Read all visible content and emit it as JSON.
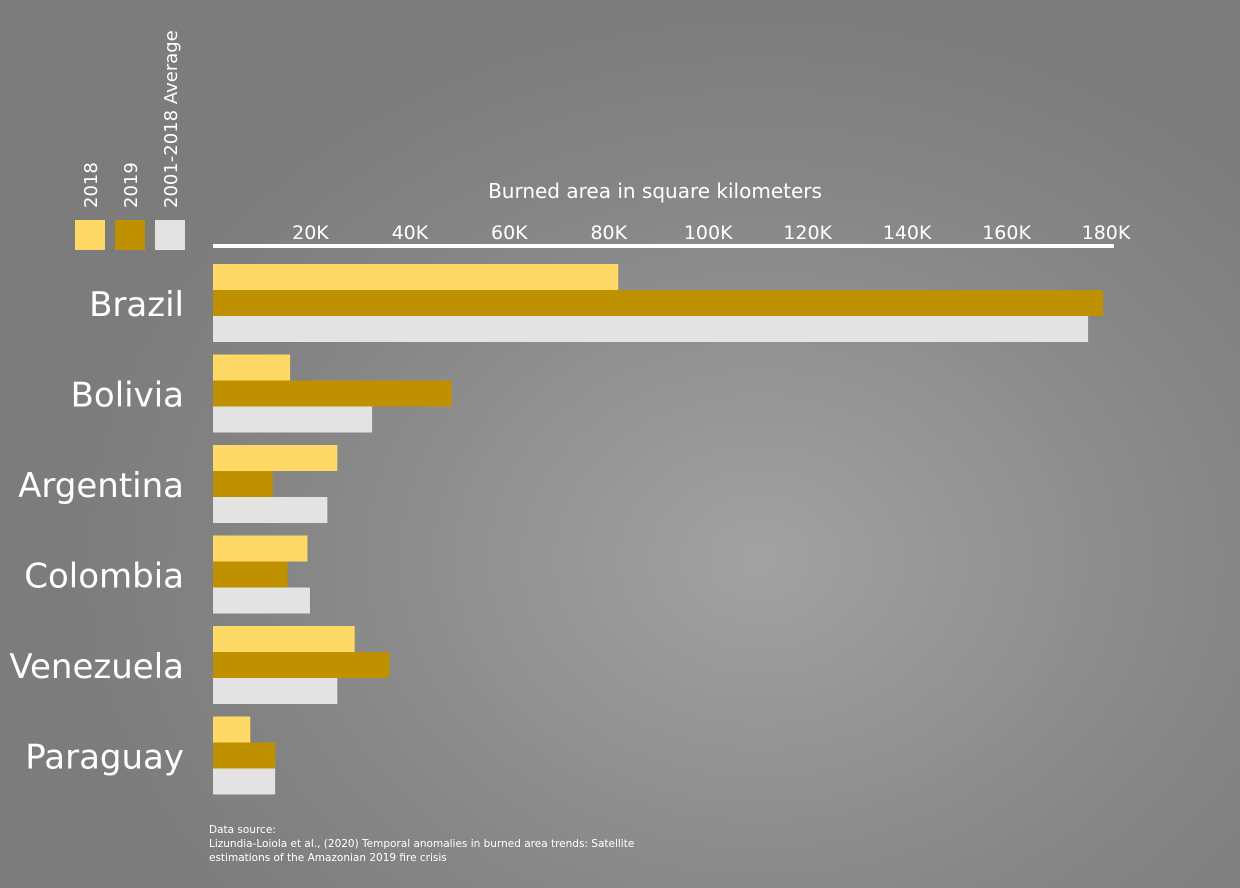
{
  "chart_data": {
    "type": "bar",
    "orientation": "horizontal",
    "xlabel": "Burned area in square kilometers",
    "tick_labels": [
      "20K",
      "40K",
      "60K",
      "80K",
      "100K",
      "120K",
      "140K",
      "160K",
      "180K"
    ],
    "tick_values": [
      20000,
      40000,
      60000,
      80000,
      100000,
      120000,
      140000,
      160000,
      180000
    ],
    "xlim": [
      0,
      180000
    ],
    "axis_position": "top",
    "legend_placement": "top-left",
    "grid": false,
    "categories": [
      "Brazil",
      "Bolivia",
      "Argentina",
      "Colombia",
      "Venezuela",
      "Paraguay"
    ],
    "series": [
      {
        "name": "2018",
        "color": "#ffd966",
        "values": [
          81500,
          15500,
          25000,
          19000,
          28500,
          7500
        ]
      },
      {
        "name": "2019",
        "color": "#bf9000",
        "values": [
          179000,
          48000,
          12000,
          15000,
          35500,
          12500
        ]
      },
      {
        "name": "2001-2018 Average",
        "color": "#e3e3e3",
        "values": [
          176000,
          32000,
          23000,
          19500,
          25000,
          12500
        ]
      }
    ]
  },
  "source": {
    "heading": "Data source:",
    "line1": "Lizundia-Loiola et al., (2020) Temporal anomalies in burned area trends: Satellite",
    "line2": "estimations of the Amazonian 2019 fire crisis"
  }
}
